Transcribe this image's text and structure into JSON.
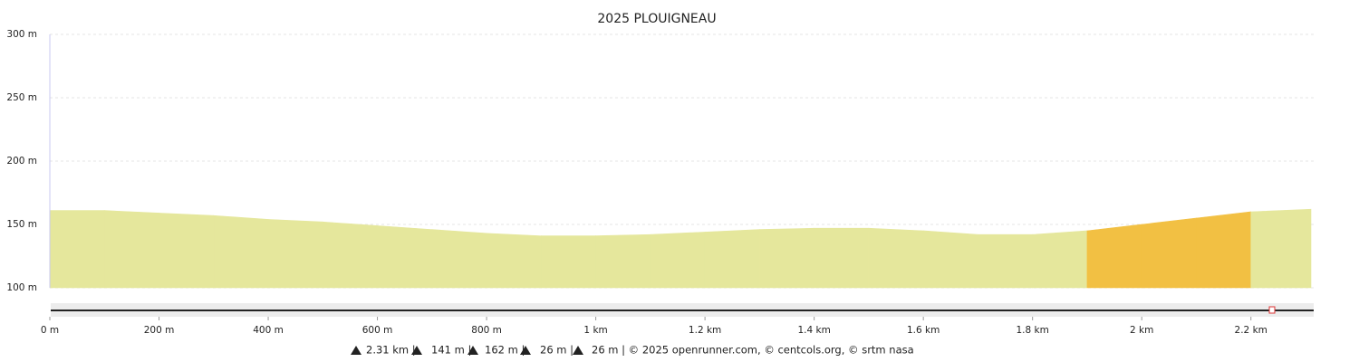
{
  "chart_data": {
    "type": "area",
    "title": "2025 PLOUIGNEAU",
    "x": [
      0,
      100,
      200,
      300,
      400,
      500,
      600,
      700,
      800,
      900,
      1000,
      1100,
      1200,
      1300,
      1400,
      1500,
      1600,
      1700,
      1800,
      1900,
      2000,
      2100,
      2200,
      2310
    ],
    "values": [
      161,
      161,
      159,
      157,
      154,
      152,
      149,
      146,
      143,
      141,
      141,
      142,
      144,
      146,
      147,
      147,
      145,
      142,
      142,
      145,
      150,
      155,
      160,
      162
    ],
    "segment_colors": [
      "#e5e79c",
      "#e5e79c",
      "#e5e79c",
      "#e5e79c",
      "#e5e79c",
      "#e5e79c",
      "#e5e79c",
      "#e5e79c",
      "#e5e79c",
      "#e5e79c",
      "#e5e79c",
      "#e5e79c",
      "#e5e79c",
      "#e5e79c",
      "#e5e79c",
      "#e5e79c",
      "#e5e79c",
      "#e5e79c",
      "#e5e79c",
      "#f2c043",
      "#f2c043",
      "#f2c043",
      "#e5e79c"
    ],
    "xlim": [
      0,
      2310
    ],
    "ylim": [
      100,
      300
    ],
    "xticks": [
      {
        "value": 0,
        "label": "0 m"
      },
      {
        "value": 200,
        "label": "200 m"
      },
      {
        "value": 400,
        "label": "400 m"
      },
      {
        "value": 600,
        "label": "600 m"
      },
      {
        "value": 800,
        "label": "800 m"
      },
      {
        "value": 1000,
        "label": "1 km"
      },
      {
        "value": 1200,
        "label": "1.2 km"
      },
      {
        "value": 1400,
        "label": "1.4 km"
      },
      {
        "value": 1600,
        "label": "1.6 km"
      },
      {
        "value": 1800,
        "label": "1.8 km"
      },
      {
        "value": 2000,
        "label": "2 km"
      },
      {
        "value": 2200,
        "label": "2.2 km"
      }
    ],
    "yticks": [
      {
        "value": 100,
        "label": "100 m"
      },
      {
        "value": 150,
        "label": "150 m"
      },
      {
        "value": 200,
        "label": "200 m"
      },
      {
        "value": 250,
        "label": "250 m"
      },
      {
        "value": 300,
        "label": "300 m"
      }
    ],
    "grid": true
  },
  "footer": [
    "2.31 km |",
    "141 m |",
    "162 m |",
    "26 m |",
    "26 m | © 2025 openrunner.com, © centcols.org, © srtm nasa"
  ]
}
